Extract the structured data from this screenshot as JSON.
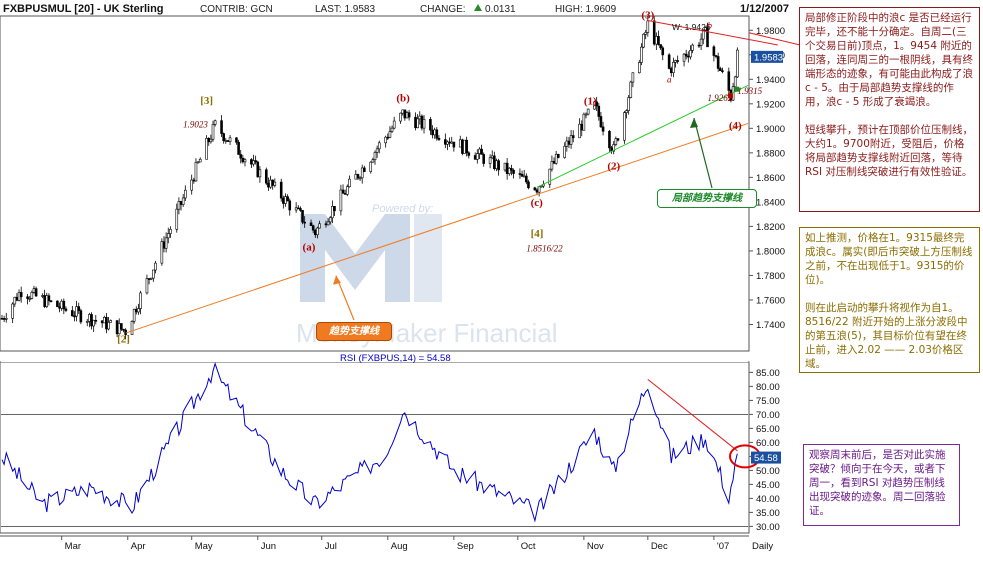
{
  "header": {
    "symbol": "FXBPUSMUL [20] - UK Sterling",
    "contrib": "CONTRIB: GCN",
    "last": "LAST: 1.9583",
    "change_label": "CHANGE:",
    "change_value": "0.0131",
    "high": "HIGH: 1.9609",
    "date": "1/12/2007"
  },
  "watermark": {
    "credit": "Powered by:",
    "name": "MoneyMaker Financial"
  },
  "price_panel": {
    "y_ticks": [
      "1.9800",
      "1.9600",
      "1.9400",
      "1.9200",
      "1.9000",
      "1.8800",
      "1.8600",
      "1.8400",
      "1.8200",
      "1.8000",
      "1.7800",
      "1.7600",
      "1.7400"
    ],
    "last_value_marker": "1.9583",
    "w_marker": "W: 1.9426",
    "wave_labels": [
      {
        "key": "w3big",
        "text": "[3]",
        "color": "#8b6d00"
      },
      {
        "key": "wa",
        "text": "(a)",
        "color": "#b30000"
      },
      {
        "key": "wb",
        "text": "(b)",
        "color": "#b30000"
      },
      {
        "key": "wc",
        "text": "(c)",
        "color": "#b30000"
      },
      {
        "key": "w4big",
        "text": "[4]",
        "color": "#8b6d00"
      },
      {
        "key": "w1",
        "text": "(1)",
        "color": "#b30000"
      },
      {
        "key": "w2",
        "text": "(2)",
        "color": "#b30000"
      },
      {
        "key": "w3",
        "text": "(3)",
        "color": "#b30000"
      },
      {
        "key": "w4",
        "text": "(4)",
        "color": "#b30000"
      },
      {
        "key": "w2big",
        "text": "[2]",
        "color": "#8b6d00"
      },
      {
        "key": "sa",
        "text": "a",
        "color": "#b30000"
      },
      {
        "key": "sb",
        "text": "b",
        "color": "#b30000"
      },
      {
        "key": "sc",
        "text": "c",
        "color": "#b30000"
      }
    ],
    "price_notes": {
      "p1": "1.9023",
      "p2": "1.8516/22",
      "p3": "1.9262",
      "p4": "1.9315"
    },
    "trend_tag": "趋势支撑线",
    "local_tag": "局部趋势支撑线"
  },
  "rsi_panel": {
    "title": "RSI (FXBPUS,14) = 54.58",
    "y_ticks": [
      "85.00",
      "80.00",
      "75.00",
      "70.00",
      "65.00",
      "60.00",
      "55.00",
      "50.00",
      "45.00",
      "40.00",
      "35.00",
      "30.00"
    ],
    "last_value_marker": "54.58"
  },
  "x_axis": {
    "labels": [
      "Mar",
      "Apr",
      "May",
      "Jun",
      "Jul",
      "Aug",
      "Sep",
      "Oct",
      "Nov",
      "Dec",
      "'07"
    ],
    "period": "Daily"
  },
  "notes": {
    "box1": "局部修正阶段中的浪c 是否已经运行完毕，还不能十分确定。自周二(三个交易日前)顶点，1。9454 附近的回落，连同周三的一根阴线，具有终端形态的迹象，有可能由此构成了浪c - 5。由于局部趋势支撑线的作用，浪c - 5 形成了衰竭浪。\n\n短线攀升，预计在顶部价位压制线，大约1。9700附近，受阻后，价格将局部趋势支撑线附近回落，等待 RSI 对压制线突破进行有效性验证。",
    "box2": "如上推测，价格在1。9315最终完成浪c。属实(即后市突破上方压制线之前，不在出现低于1。9315的价位)。\n\n则在此启动的攀升将视作为自1。8516/22 附近开始的上涨分波段中的第五浪(5)，其目标价位有望在终止前，进入2.02 —— 2.03价格区域。",
    "box3": "观察周末前后，是否对此实施突破？倾向于在今天，或者下周一，看到RSI 对趋势压制线出现突破的迹象。周二回落验证。"
  },
  "colors": {
    "candles": "#000000",
    "rsi_line": "#0000cc",
    "trend_line": "#f07a20",
    "local_trend_line": "#22cc22",
    "resistance_line": "#e02020",
    "rsi_resistance": "#e02020",
    "annotation_red": "#b30000",
    "annotation_gold": "#8b6d00",
    "box_purple": "#7a2a9a"
  },
  "chart_data": [
    {
      "type": "candlestick",
      "title": "FXBPUSMUL [20] - UK Sterling",
      "period": "Daily",
      "ylim": [
        1.72,
        1.99
      ],
      "x_labels": [
        "Mar",
        "Apr",
        "May",
        "Jun",
        "Jul",
        "Aug",
        "Sep",
        "Oct",
        "Nov",
        "Dec",
        "'07"
      ],
      "last": 1.9583,
      "change": 0.0131,
      "high": 1.9609,
      "key_points": [
        {
          "label": "[2]",
          "date": "2006-03-31",
          "price": 1.735
        },
        {
          "label": "[3]",
          "date": "2006-05-12",
          "price": 1.9023
        },
        {
          "label": "(a)",
          "date": "2006-06-28",
          "price": 1.8155
        },
        {
          "label": "(b)",
          "date": "2006-08-08",
          "price": 1.912
        },
        {
          "label": "(c) [4]",
          "date": "2006-10-10",
          "price": 1.8519
        },
        {
          "label": "(1)",
          "date": "2006-11-06",
          "price": 1.918
        },
        {
          "label": "(2)",
          "date": "2006-11-15",
          "price": 1.882
        },
        {
          "label": "(3)",
          "date": "2006-12-01",
          "price": 1.9845
        },
        {
          "label": "a",
          "date": "2006-12-11",
          "price": 1.948
        },
        {
          "label": "b",
          "date": "2006-12-28",
          "price": 1.9765
        },
        {
          "label": "c",
          "date": "2007-01-09",
          "price": 1.9262
        },
        {
          "label": "last",
          "date": "2007-01-12",
          "price": 1.9583
        }
      ],
      "trendlines": [
        {
          "name": "趋势支撑线",
          "from": {
            "date": "2006-03-31",
            "price": 1.733
          },
          "to": {
            "date": "2007-01-17",
            "price": 1.904
          }
        },
        {
          "name": "局部趋势支撑线",
          "from": {
            "date": "2006-10-10",
            "price": 1.8519
          },
          "to": {
            "date": "2007-01-17",
            "price": 1.935
          }
        },
        {
          "name": "resistance",
          "from": {
            "date": "2006-12-01",
            "price": 1.988
          },
          "to": {
            "date": "2007-01-31",
            "price": 1.968
          }
        }
      ]
    },
    {
      "type": "line",
      "title": "RSI (FXBPUS,14) = 54.58",
      "ylim": [
        28,
        88
      ],
      "guide_levels": [
        70,
        30
      ],
      "x_labels": [
        "Mar",
        "Apr",
        "May",
        "Jun",
        "Jul",
        "Aug",
        "Sep",
        "Oct",
        "Nov",
        "Dec",
        "'07"
      ],
      "key_points": [
        {
          "date": "2006-02-01",
          "value": 55
        },
        {
          "date": "2006-02-20",
          "value": 38
        },
        {
          "date": "2006-03-15",
          "value": 44
        },
        {
          "date": "2006-04-03",
          "value": 37
        },
        {
          "date": "2006-05-11",
          "value": 86
        },
        {
          "date": "2006-06-12",
          "value": 50
        },
        {
          "date": "2006-06-28",
          "value": 38
        },
        {
          "date": "2006-07-31",
          "value": 56
        },
        {
          "date": "2006-08-08",
          "value": 72
        },
        {
          "date": "2006-09-01",
          "value": 50
        },
        {
          "date": "2006-10-10",
          "value": 35
        },
        {
          "date": "2006-11-06",
          "value": 64
        },
        {
          "date": "2006-11-15",
          "value": 50
        },
        {
          "date": "2006-12-01",
          "value": 82
        },
        {
          "date": "2006-12-12",
          "value": 55
        },
        {
          "date": "2006-12-28",
          "value": 62
        },
        {
          "date": "2007-01-08",
          "value": 41
        },
        {
          "date": "2007-01-12",
          "value": 54.58
        }
      ],
      "last": 54.58
    }
  ]
}
